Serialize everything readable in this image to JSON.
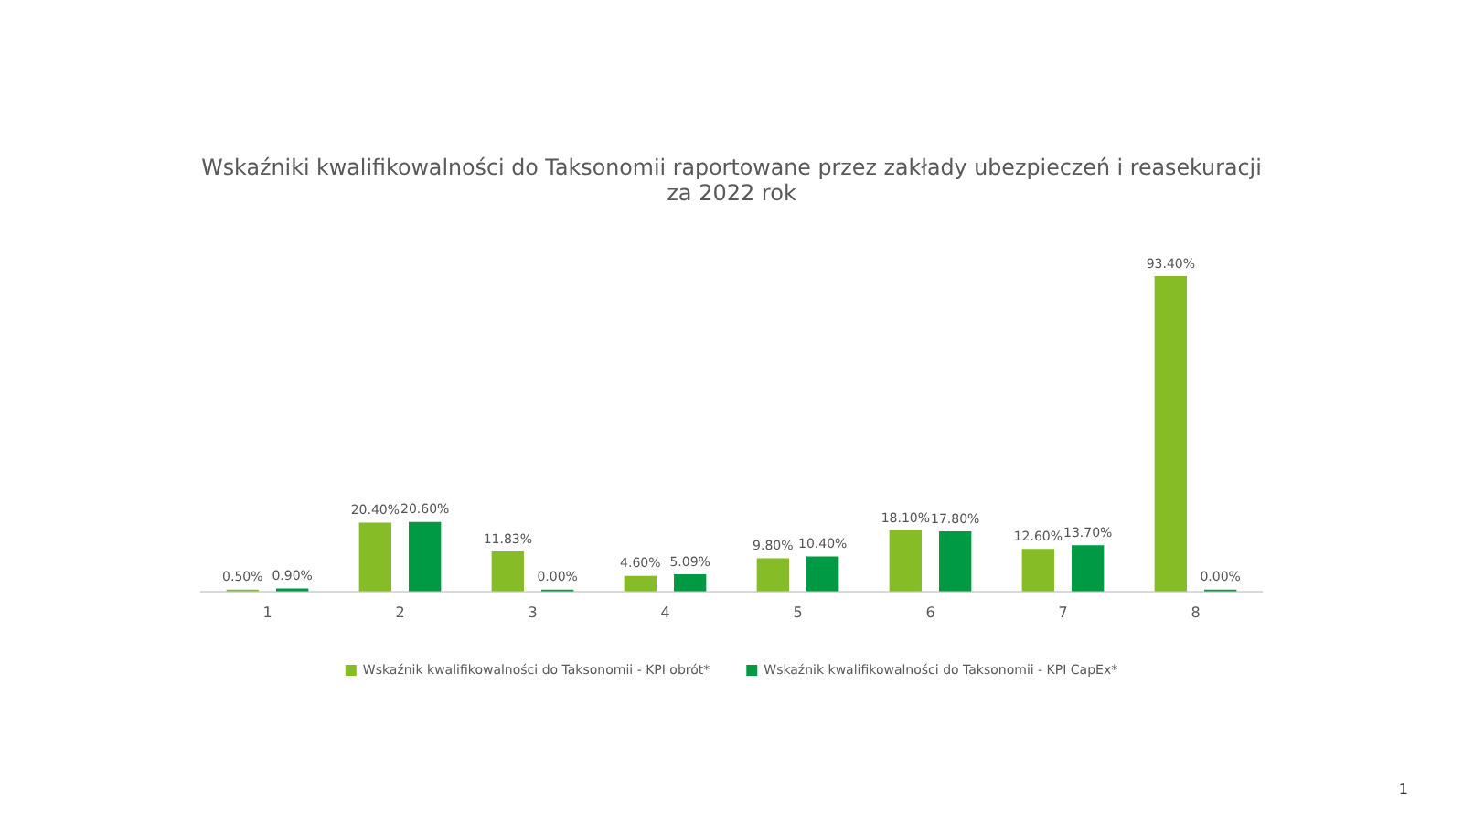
{
  "chart_data": {
    "type": "bar",
    "title": "Wskaźniki kwalifikowalności do Taksonomii raportowane przez zakłady ubezpieczeń i reasekuracji\nza 2022 rok",
    "categories": [
      "1",
      "2",
      "3",
      "4",
      "5",
      "6",
      "7",
      "8"
    ],
    "series": [
      {
        "name": "Wskaźnik kwalifikowalności do Taksonomii - KPI obrót*",
        "color": "#86bc25",
        "values": [
          0.5,
          20.4,
          11.83,
          4.6,
          9.8,
          18.1,
          12.6,
          93.4
        ],
        "value_labels": [
          "0.50%",
          "20.40%",
          "11.83%",
          "4.60%",
          "9.80%",
          "18.10%",
          "12.60%",
          "93.40%"
        ]
      },
      {
        "name": "Wskaźnik kwalifikowalności do Taksonomii - KPI CapEx*",
        "color": "#009a44",
        "values": [
          0.9,
          20.6,
          0,
          5.09,
          10.4,
          17.8,
          13.7,
          0
        ],
        "value_labels": [
          "0.90%",
          "20.60%",
          "0.00%",
          "5.09%",
          "10.40%",
          "17.80%",
          "13.70%",
          "0.00%"
        ]
      }
    ],
    "tick_labels": "x",
    "grid": false,
    "legend": "bottom",
    "annotations": [
      "1"
    ]
  }
}
